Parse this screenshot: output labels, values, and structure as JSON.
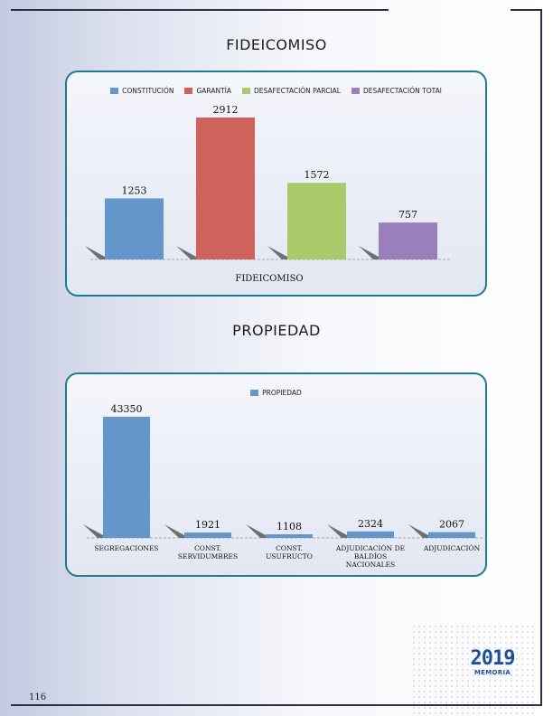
{
  "page": {
    "number": "116"
  },
  "logo": {
    "year": "2019",
    "word": "MEMORIA"
  },
  "colors": {
    "blue": "#6496cc",
    "red": "#d0625c",
    "green": "#a9c96a",
    "purple": "#9a7fbb",
    "panel_border": "#1f7c8c"
  },
  "sections": {
    "fideicomiso_title": "FIDEICOMISO",
    "propiedad_title": "PROPIEDAD"
  },
  "chart_data": [
    {
      "type": "bar",
      "title": "",
      "xlabel": "FIDEICOMISO",
      "ylabel": "",
      "legend_position": "top",
      "categories": [
        "CONSTITUCIÓN",
        "GARANTÍA",
        "DESAFECTACIÓN PARCIAL",
        "DESAFECTACIÓN TOTAl"
      ],
      "values": [
        1253,
        2912,
        1572,
        757
      ],
      "colors": [
        "#6496cc",
        "#d0625c",
        "#a9c96a",
        "#9a7fbb"
      ],
      "ylim": [
        0,
        2912
      ]
    },
    {
      "type": "bar",
      "title": "",
      "xlabel": "",
      "ylabel": "",
      "legend_position": "top",
      "series_name": "PROPIEDAD",
      "categories": [
        "SEGREGACIONES",
        "CONST. SERVIDUMBRES",
        "CONST. USUFRUCTO",
        "ADJUDICACIÓN DE BALDÍOS NACIONALES",
        "ADJUDICACIÓN"
      ],
      "category_lines": [
        [
          "SEGREGACIONES"
        ],
        [
          "CONST.",
          "SERVIDUMBRES"
        ],
        [
          "CONST.",
          "USUFRUCTO"
        ],
        [
          "ADJUDICACIÓN DE",
          "BALDÍOS",
          "NACIONALES"
        ],
        [
          "ADJUDICACIÓN"
        ]
      ],
      "values": [
        43350,
        1921,
        1108,
        2324,
        2067
      ],
      "color": "#6496cc",
      "ylim": [
        0,
        43350
      ]
    }
  ]
}
